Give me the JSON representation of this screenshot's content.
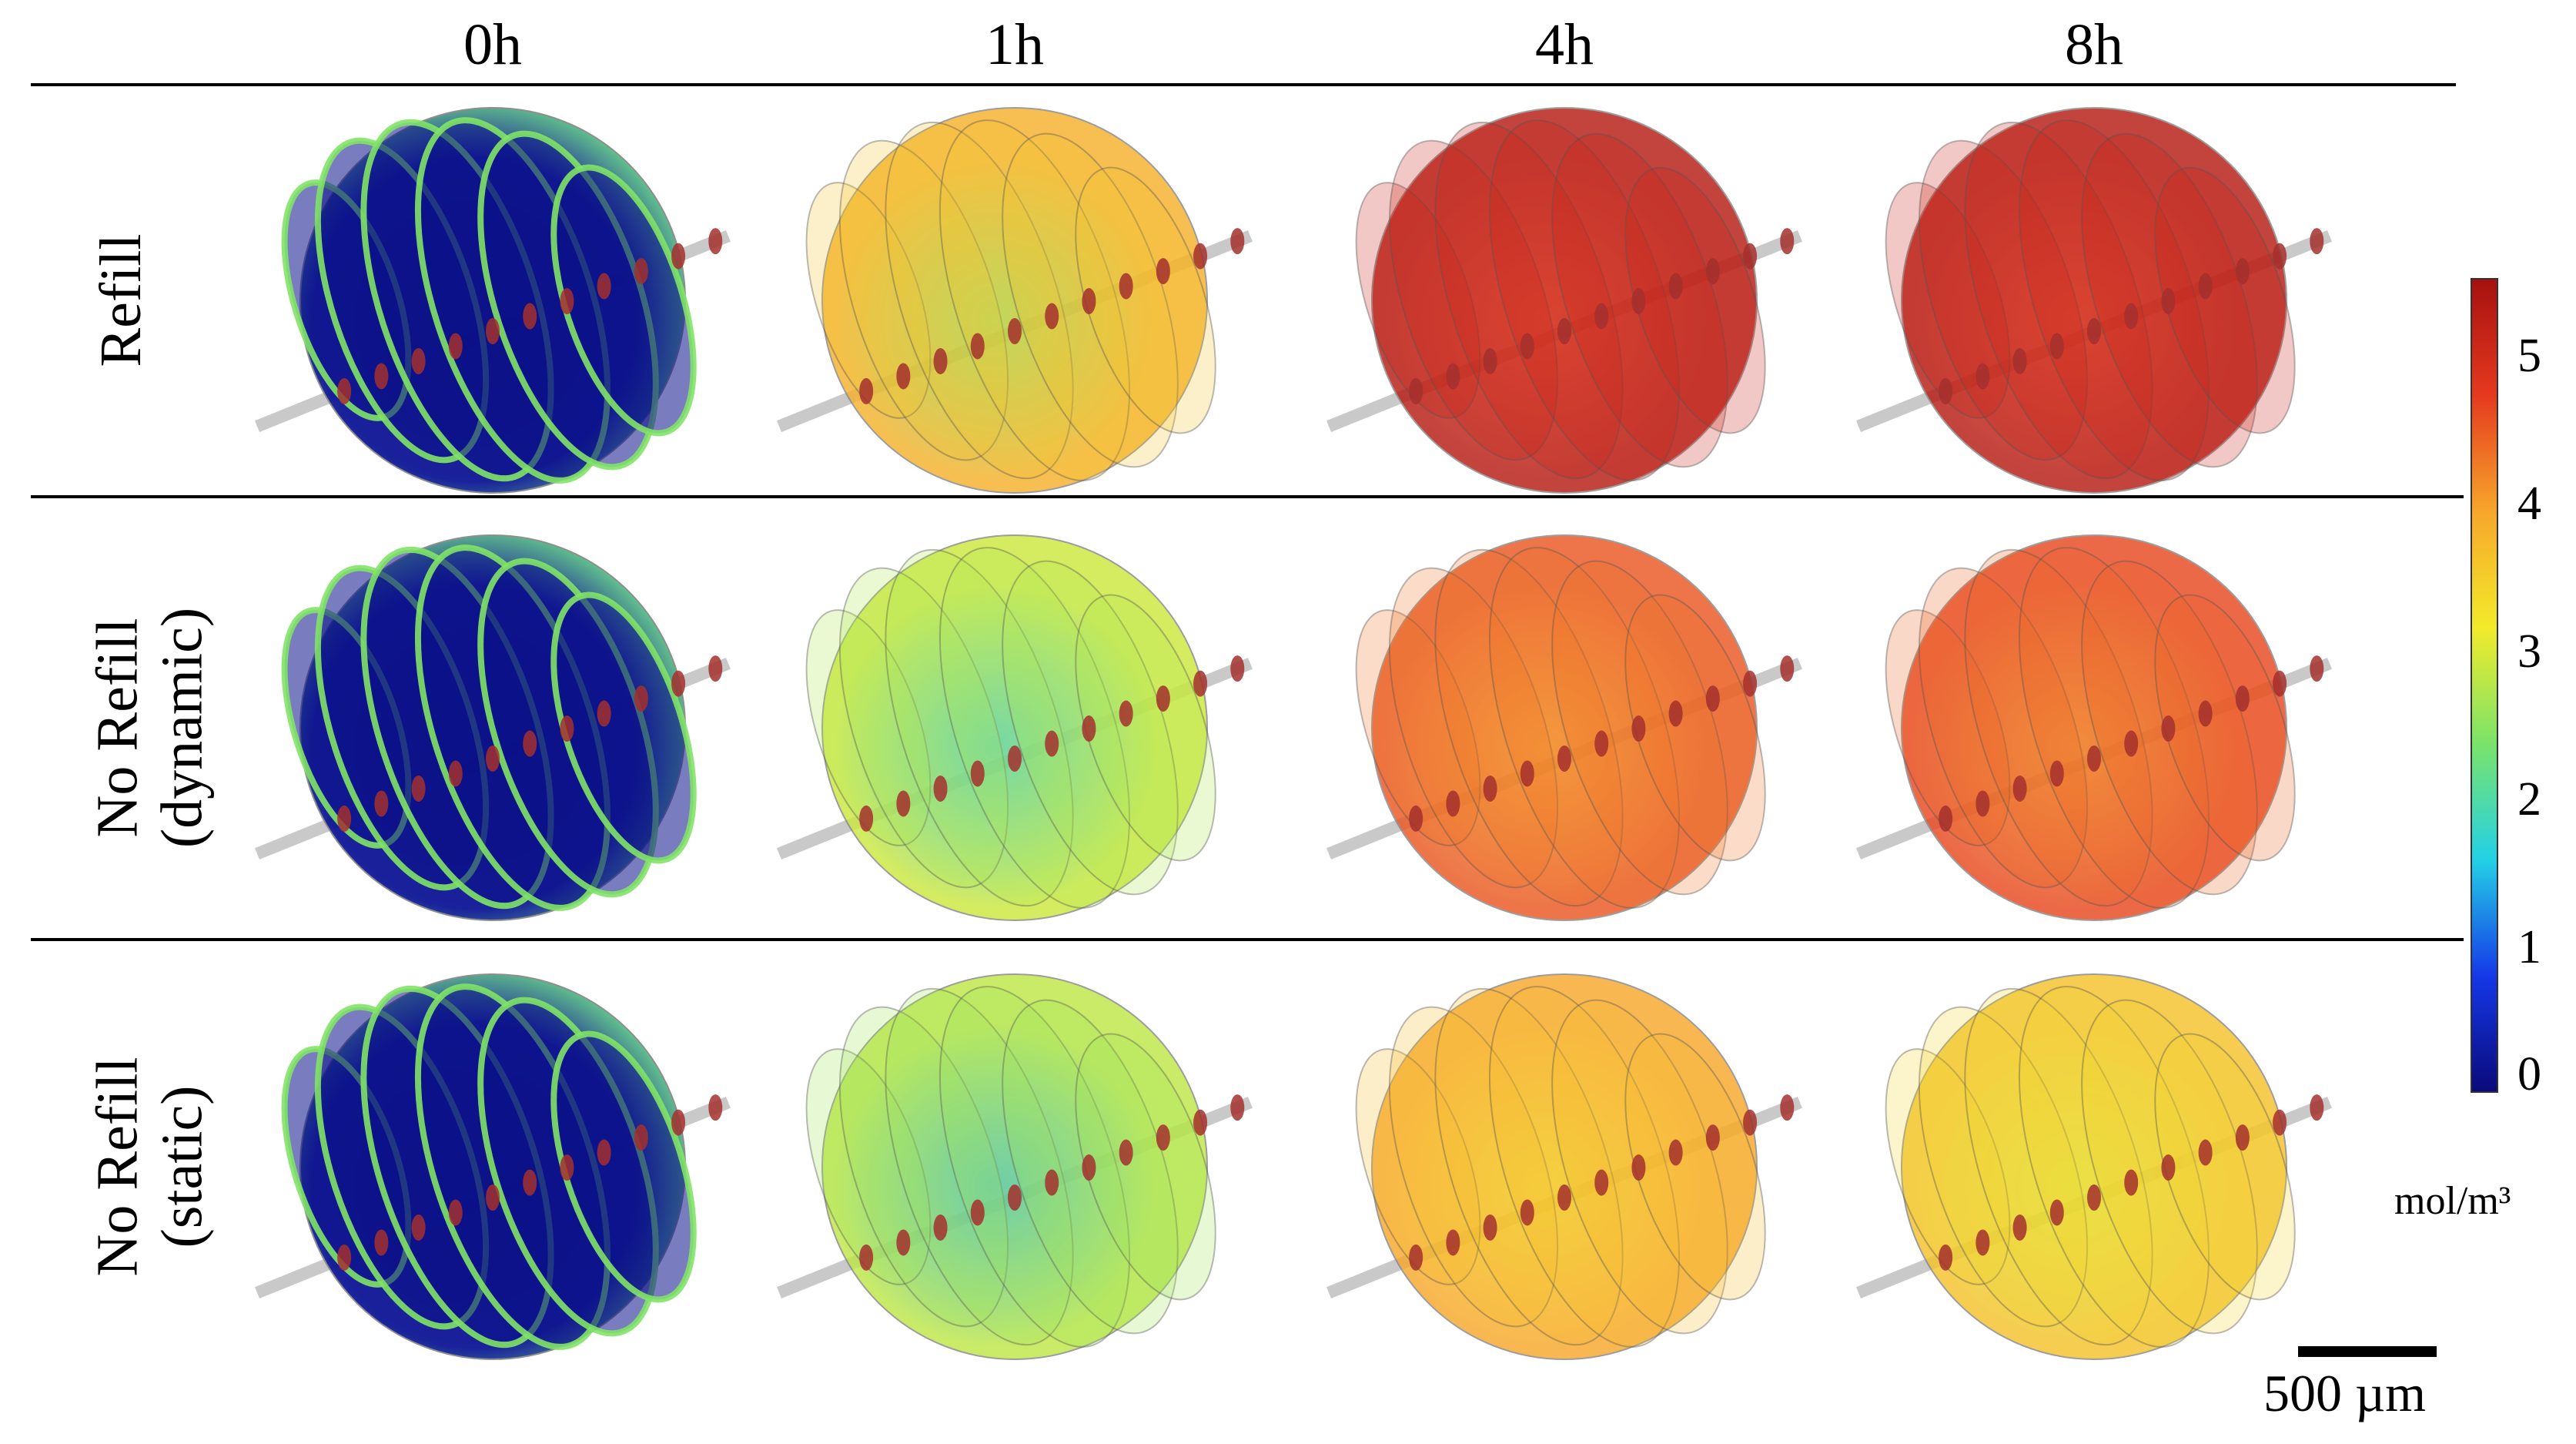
{
  "columns": [
    "0h",
    "1h",
    "4h",
    "8h"
  ],
  "rows": [
    {
      "label_line1": "Refill",
      "label_line2": ""
    },
    {
      "label_line1": "No Refill",
      "label_line2": "(dynamic)"
    },
    {
      "label_line1": "No Refill",
      "label_line2": "(static)"
    }
  ],
  "colorbar": {
    "ticks": [
      "5",
      "4",
      "3",
      "2",
      "1",
      "0"
    ],
    "min": 0,
    "max": 5.5,
    "unit": "mol/m³",
    "colors": [
      "#0a0a7a",
      "#1538e8",
      "#23d1e6",
      "#7be36a",
      "#f2ea2a",
      "#f7a62b",
      "#e5391f",
      "#a6110f"
    ]
  },
  "scale_bar": {
    "label": "500 µm"
  },
  "cell_levels": [
    [
      0.05,
      3.8,
      5.3,
      5.3
    ],
    [
      0.05,
      2.9,
      4.5,
      4.6
    ],
    [
      0.05,
      2.8,
      3.9,
      3.6
    ]
  ]
}
